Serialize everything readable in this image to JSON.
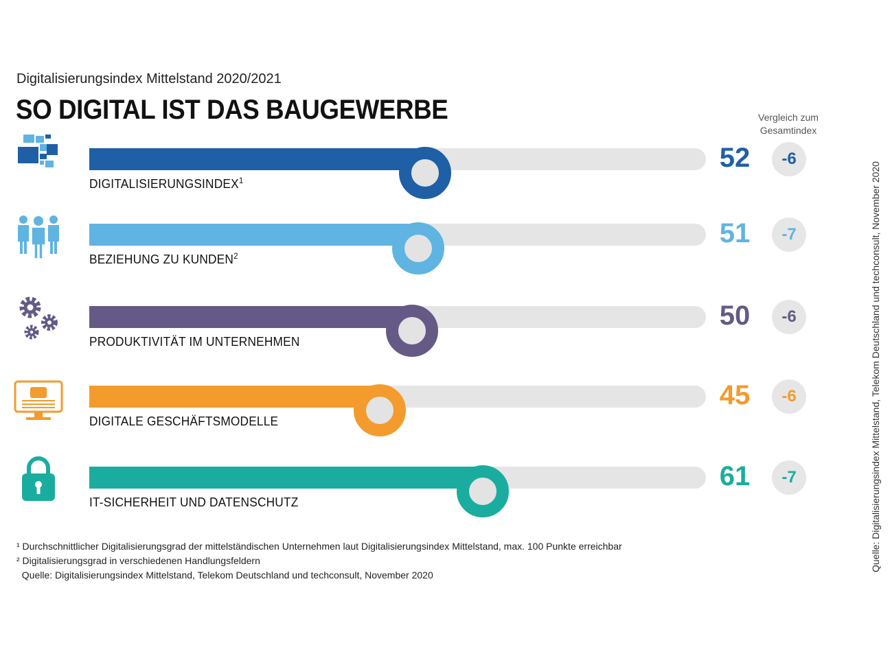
{
  "header": {
    "subtitle": "Digitalisierungsindex Mittelstand 2020/2021",
    "title": "SO DIGITAL IST DAS BAUGEWERBE",
    "compare_line1": "Vergleich zum",
    "compare_line2": "Gesamtindex"
  },
  "chart_data": {
    "type": "bar",
    "orientation": "horizontal",
    "title": "SO DIGITAL IST DAS BAUGEWERBE",
    "subtitle": "Digitalisierungsindex Mittelstand 2020/2021",
    "xlim": [
      0,
      100
    ],
    "categories": [
      "DIGITALISIERUNGSINDEX",
      "BEZIEHUNG ZU KUNDEN",
      "PRODUKTIVITÄT IM UNTERNEHMEN",
      "DIGITALE GESCHÄFTSMODELLE",
      "IT-SICHERHEIT UND DATENSCHUTZ"
    ],
    "rows": [
      {
        "label": "DIGITALISIERUNGSINDEX",
        "sup": "1",
        "value": 52,
        "value_text": "52",
        "delta": "-6",
        "color": "#1f5fa6",
        "icon": "digital-blocks-icon"
      },
      {
        "label": "BEZIEHUNG ZU KUNDEN",
        "sup": "2",
        "value": 51,
        "value_text": "51",
        "delta": "-7",
        "color": "#5fb4e2",
        "icon": "people-group-icon"
      },
      {
        "label": "PRODUKTIVITÄT IM UNTERNEHMEN",
        "sup": "",
        "value": 50,
        "value_text": "50",
        "delta": "-6",
        "color": "#655a86",
        "icon": "gears-icon"
      },
      {
        "label": "DIGITALE GESCHÄFTSMODELLE",
        "sup": "",
        "value": 45,
        "value_text": "45",
        "delta": "-6",
        "color": "#f39b2c",
        "icon": "monitor-icon"
      },
      {
        "label": "IT-SICHERHEIT UND DATENSCHUTZ",
        "sup": "",
        "value": 61,
        "value_text": "61",
        "delta": "-7",
        "color": "#1aad9f",
        "icon": "padlock-icon"
      }
    ]
  },
  "footnotes": {
    "note1": "¹ Durchschnittlicher Digitalisierungsgrad der mittelständischen Unternehmen laut Digitalisierungsindex Mittelstand, max. 100 Punkte erreichbar",
    "note2": "² Digitalisierungsgrad in verschiedenen Handlungsfeldern",
    "source": "  Quelle: Digitalisierungsindex Mittelstand, Telekom Deutschland und techconsult, November 2020"
  },
  "side_source": "Quelle: Digitalisierungsindex Mittelstand, Telekom Deutschland und techconsult, November 2020"
}
